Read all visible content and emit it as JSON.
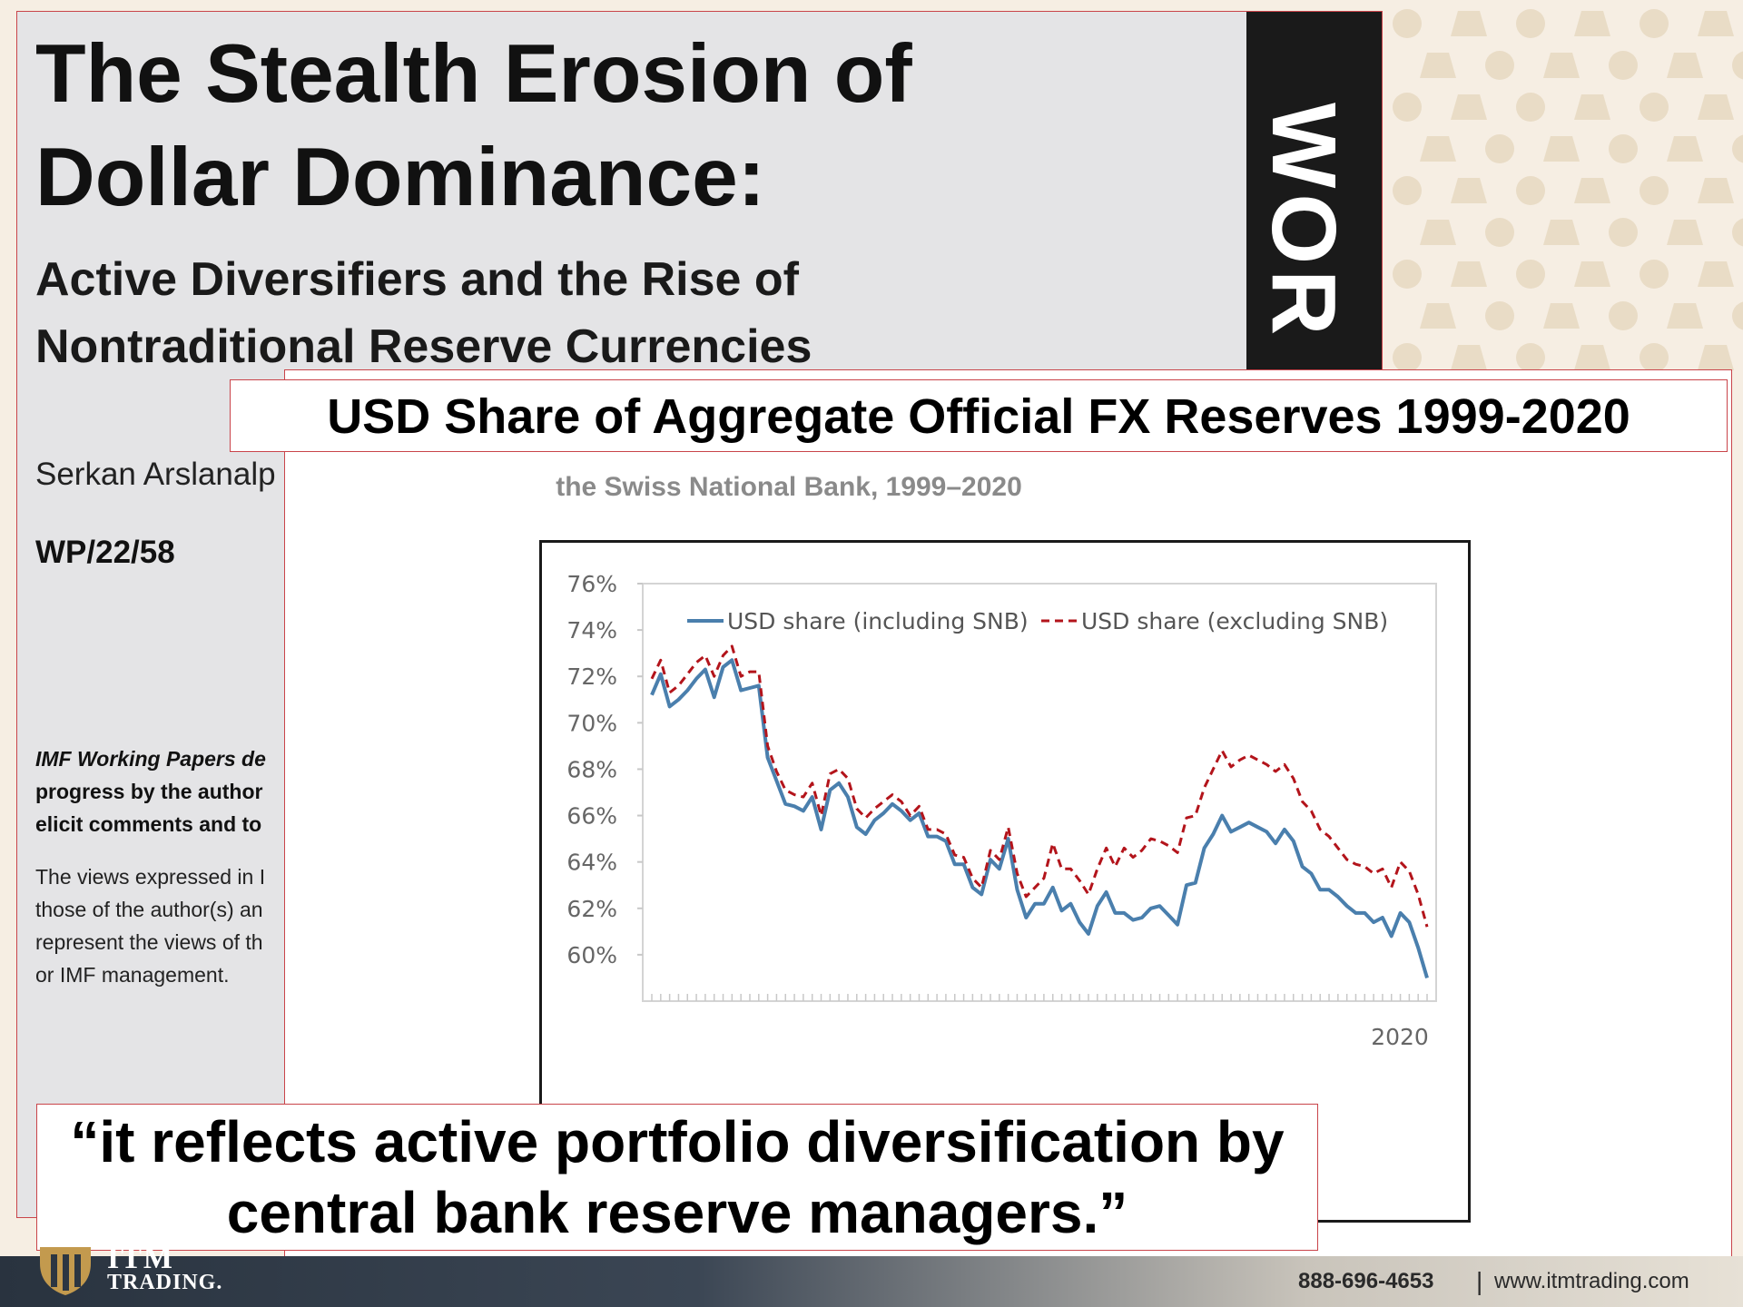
{
  "paper": {
    "title_line1": "The Stealth Erosion of",
    "title_line2": "Dollar Dominance:",
    "subtitle_line1": "Active Diversifiers and the Rise of",
    "subtitle_line2": "Nontraditional Reserve Currencies",
    "author": "Serkan Arslanalp",
    "wp_number": "WP/22/58",
    "disclaimer_bold_italic": "IMF Working Papers de",
    "disclaimer_line2": "progress by the author",
    "disclaimer_line3": "elicit comments and to",
    "views_line1": "The views expressed in I",
    "views_line2": "those of the author(s) an",
    "views_line3": "represent the views of th",
    "views_line4": "or IMF management.",
    "sidebar_text": "WOR"
  },
  "banner": {
    "title": "USD Share of Aggregate Official FX Reserves 1999-2020"
  },
  "chart_card": {
    "subtitle": "the Swiss National Bank, 1999–2020"
  },
  "quote": {
    "text": "“it reflects active portfolio diversification by central bank reserve managers.”"
  },
  "footer": {
    "brand_top": "ITM",
    "brand": "TRADING.",
    "phone": "888-696-4653",
    "separator": "|",
    "url": "www.itmtrading.com"
  },
  "colors": {
    "series_including": "#4a7fad",
    "series_excluding": "#b3141b",
    "accent_border": "#c9444a"
  },
  "chart_data": {
    "type": "line",
    "title": "USD Share of Aggregate Official FX Reserves 1999-2020",
    "ylim": [
      58,
      76
    ],
    "yticks": [
      "76%",
      "74%",
      "72%",
      "70%",
      "68%",
      "66%",
      "64%",
      "62%",
      "60%"
    ],
    "xlabel": "",
    "ylabel": "",
    "x_tick_labels": [
      "2020"
    ],
    "legend_position": "top",
    "grid": false,
    "series": [
      {
        "name": "USD share (including SNB)",
        "style": "solid",
        "values": [
          71.2,
          72.1,
          70.7,
          71.0,
          71.4,
          71.9,
          72.3,
          71.1,
          72.4,
          72.7,
          71.4,
          71.5,
          71.6,
          68.5,
          67.5,
          66.5,
          66.4,
          66.2,
          66.8,
          65.4,
          67.1,
          67.4,
          66.8,
          65.5,
          65.2,
          65.8,
          66.1,
          66.5,
          66.2,
          65.8,
          66.1,
          65.1,
          65.1,
          64.9,
          63.9,
          63.9,
          62.9,
          62.6,
          64.1,
          63.7,
          65.0,
          62.8,
          61.6,
          62.2,
          62.2,
          62.9,
          61.9,
          62.2,
          61.4,
          60.9,
          62.1,
          62.7,
          61.8,
          61.8,
          61.5,
          61.6,
          62.0,
          62.1,
          61.7,
          61.3,
          63.0,
          63.1,
          64.6,
          65.2,
          66.0,
          65.3,
          65.5,
          65.7,
          65.5,
          65.3,
          64.8,
          65.4,
          64.9,
          63.8,
          63.5,
          62.8,
          62.8,
          62.5,
          62.1,
          61.8,
          61.8,
          61.4,
          61.6,
          60.8,
          61.8,
          61.4,
          60.3,
          59.0
        ]
      },
      {
        "name": "USD share (excluding SNB)",
        "style": "dashed",
        "values": [
          71.9,
          72.7,
          71.3,
          71.6,
          72.1,
          72.6,
          72.9,
          72.0,
          72.9,
          73.3,
          72.0,
          72.2,
          72.2,
          69.0,
          67.9,
          67.1,
          66.9,
          66.8,
          67.4,
          66.0,
          67.8,
          68.0,
          67.6,
          66.3,
          65.9,
          66.3,
          66.6,
          66.9,
          66.6,
          66.0,
          66.4,
          65.4,
          65.4,
          65.2,
          64.3,
          64.2,
          63.3,
          62.9,
          64.5,
          64.1,
          65.5,
          63.5,
          62.5,
          62.9,
          63.3,
          64.8,
          63.7,
          63.7,
          63.2,
          62.6,
          63.7,
          64.6,
          63.8,
          64.6,
          64.2,
          64.5,
          65.0,
          64.9,
          64.7,
          64.4,
          65.9,
          66.0,
          67.2,
          68.0,
          68.8,
          68.1,
          68.4,
          68.6,
          68.4,
          68.2,
          67.9,
          68.2,
          67.6,
          66.6,
          66.2,
          65.4,
          65.1,
          64.6,
          64.1,
          63.9,
          63.8,
          63.5,
          63.7,
          62.9,
          64.0,
          63.6,
          62.6,
          61.2
        ]
      }
    ]
  }
}
